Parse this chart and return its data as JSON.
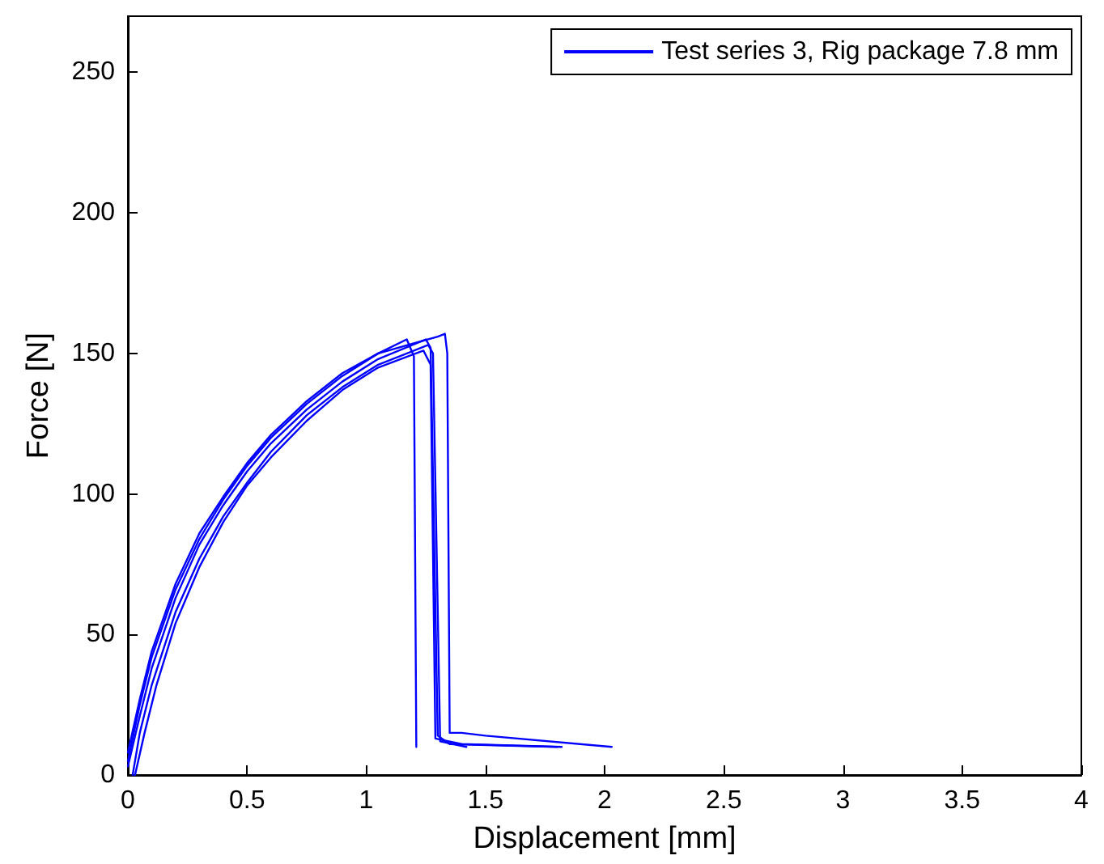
{
  "chart_data": {
    "type": "line",
    "xlabel": "Displacement [mm]",
    "ylabel": "Force [N]",
    "xlim": [
      0,
      4
    ],
    "xticks": [
      0,
      0.5,
      1,
      1.5,
      2,
      2.5,
      3,
      3.5,
      4
    ],
    "ylim": [
      0,
      270
    ],
    "yticks": [
      0,
      50,
      100,
      150,
      200,
      250
    ],
    "grid": false,
    "legend": "top right",
    "marker": "none",
    "line_style": "solid",
    "series": [
      {
        "name": "Test series 3, Rig package 7.8 mm",
        "color": "#0000ff",
        "x": [
          0,
          0.05,
          0.1,
          0.2,
          0.3,
          0.4,
          0.5,
          0.6,
          0.75,
          0.9,
          1.05,
          1.17,
          1.2,
          1.21
        ],
        "values": [
          5,
          25,
          42,
          66,
          84,
          98,
          110,
          120,
          132,
          142,
          150,
          155,
          149,
          10
        ]
      },
      {
        "color": "#0000ff",
        "x": [
          0,
          0.05,
          0.1,
          0.2,
          0.3,
          0.4,
          0.5,
          0.6,
          0.75,
          0.9,
          1.05,
          1.25,
          1.27,
          1.3,
          1.35,
          1.8
        ],
        "values": [
          3,
          21,
          38,
          63,
          82,
          96,
          108,
          118,
          130,
          140,
          148,
          155,
          152,
          14,
          11,
          10
        ]
      },
      {
        "color": "#0000ff",
        "x": [
          0.02,
          0.05,
          0.1,
          0.2,
          0.3,
          0.4,
          0.5,
          0.6,
          0.75,
          0.9,
          1.05,
          1.26,
          1.28,
          1.31,
          1.42
        ],
        "values": [
          0,
          15,
          32,
          58,
          77,
          92,
          104,
          115,
          128,
          138,
          146,
          153,
          150,
          12,
          10
        ]
      },
      {
        "color": "#0000ff",
        "x": [
          0.03,
          0.07,
          0.12,
          0.2,
          0.3,
          0.4,
          0.5,
          0.6,
          0.75,
          0.9,
          1.05,
          1.24,
          1.27,
          1.29,
          1.4,
          1.82
        ],
        "values": [
          0,
          15,
          32,
          54,
          74,
          90,
          103,
          113,
          126,
          137,
          145,
          151,
          146,
          13,
          11,
          10
        ]
      },
      {
        "color": "#0000ff",
        "x": [
          0,
          0.05,
          0.1,
          0.2,
          0.3,
          0.4,
          0.5,
          0.6,
          0.75,
          0.9,
          1.05,
          1.3,
          1.33,
          1.34,
          1.35,
          1.4,
          1.5,
          2.03
        ],
        "values": [
          8,
          27,
          44,
          68,
          86,
          99,
          111,
          121,
          133,
          143,
          150,
          156,
          157,
          150,
          15,
          15,
          14,
          10
        ]
      }
    ]
  }
}
